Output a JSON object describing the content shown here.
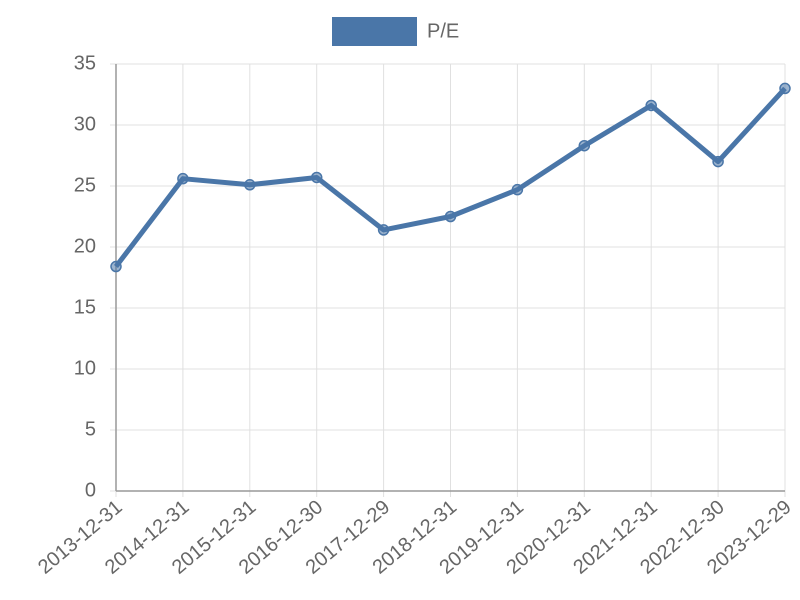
{
  "chart_data": {
    "type": "line",
    "categories": [
      "2013-12-31",
      "2014-12-31",
      "2015-12-31",
      "2016-12-30",
      "2017-12-29",
      "2018-12-31",
      "2019-12-31",
      "2020-12-31",
      "2021-12-31",
      "2022-12-30",
      "2023-12-29"
    ],
    "series": [
      {
        "name": "P/E",
        "color": "#4a76a8",
        "values": [
          18.4,
          25.6,
          25.1,
          25.7,
          21.4,
          22.5,
          24.7,
          28.3,
          31.6,
          27.0,
          33.0
        ]
      }
    ],
    "ylim": [
      0,
      35
    ],
    "yticks": [
      0,
      5,
      10,
      15,
      20,
      25,
      30,
      35
    ],
    "grid": true,
    "legend": "top"
  }
}
